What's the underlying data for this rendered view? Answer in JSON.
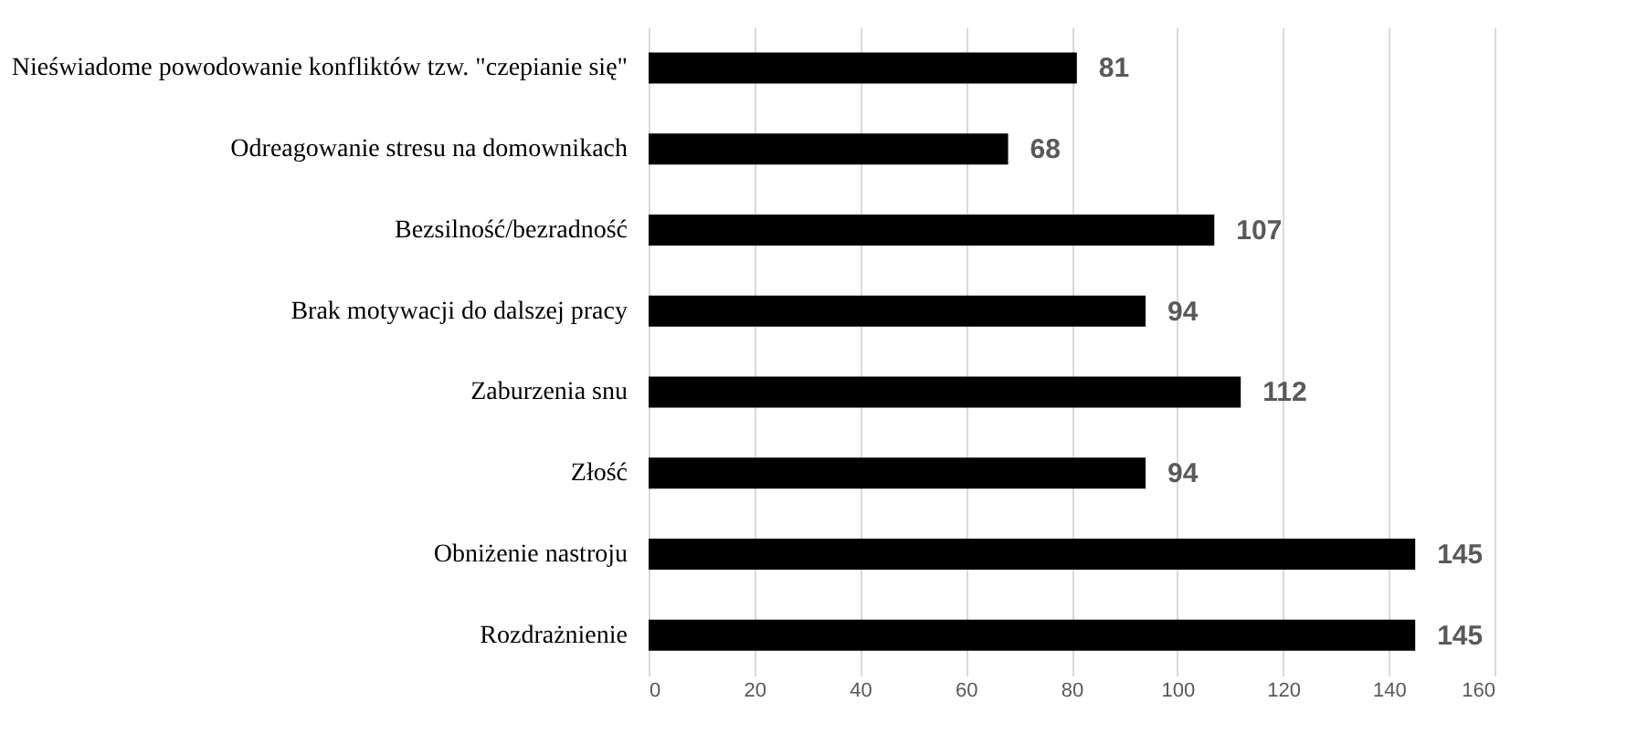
{
  "chart_data": {
    "type": "bar",
    "orientation": "horizontal",
    "categories": [
      "Nieświadome powodowanie konfliktów tzw. \"czepianie się\"",
      "Odreagowanie stresu na domownikach",
      "Bezsilność/bezradność",
      "Brak motywacji do dalszej pracy",
      "Zaburzenia snu",
      "Złość",
      "Obniżenie nastroju",
      "Rozdrażnienie"
    ],
    "values": [
      81,
      68,
      107,
      94,
      112,
      94,
      145,
      145
    ],
    "color": "#000000",
    "xlim": [
      0,
      160
    ],
    "xticks": [
      0,
      20,
      40,
      60,
      80,
      100,
      120,
      140,
      160
    ],
    "grid": "x",
    "data_labels": true
  }
}
